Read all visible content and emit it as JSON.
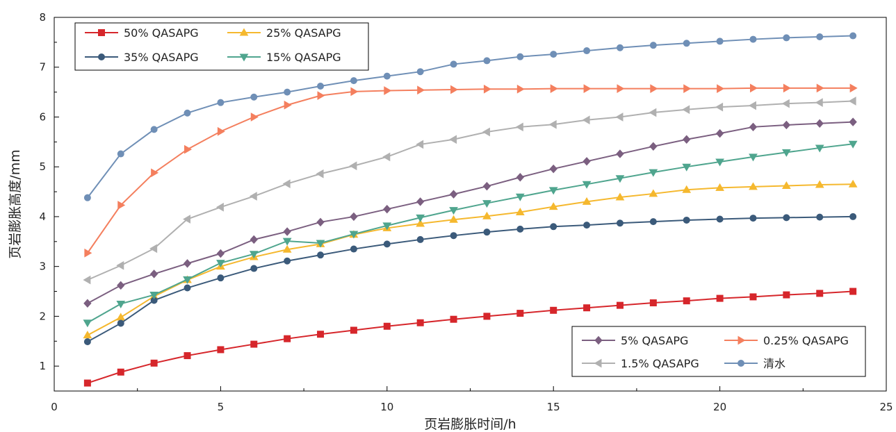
{
  "chart_data": {
    "type": "line",
    "xlabel": "页岩膨胀时间/h",
    "ylabel": "页岩膨胀高度/mm",
    "xlim": [
      0,
      25
    ],
    "ylim": [
      0.5,
      8
    ],
    "xticks": [
      0,
      5,
      10,
      15,
      20,
      25
    ],
    "yticks": [
      1,
      2,
      3,
      4,
      5,
      6,
      7,
      8
    ],
    "grid": false,
    "legends": [
      "top-left",
      "bottom-right"
    ],
    "x": [
      1,
      2,
      3,
      4,
      5,
      6,
      7,
      8,
      9,
      10,
      11,
      12,
      13,
      14,
      15,
      16,
      17,
      18,
      19,
      20,
      21,
      22,
      23,
      24
    ],
    "series": [
      {
        "name": "50% QASAPG",
        "color": "#d6262b",
        "marker": "square",
        "values": [
          0.66,
          0.88,
          1.06,
          1.21,
          1.33,
          1.44,
          1.55,
          1.64,
          1.72,
          1.8,
          1.87,
          1.94,
          2.0,
          2.06,
          2.12,
          2.17,
          2.22,
          2.27,
          2.31,
          2.36,
          2.39,
          2.43,
          2.46,
          2.5
        ]
      },
      {
        "name": "25% QASAPG",
        "color": "#f5b82e",
        "marker": "triangle-up",
        "values": [
          1.62,
          1.98,
          2.4,
          2.73,
          3.0,
          3.19,
          3.34,
          3.45,
          3.64,
          3.77,
          3.86,
          3.94,
          4.01,
          4.09,
          4.2,
          4.3,
          4.39,
          4.46,
          4.54,
          4.58,
          4.6,
          4.62,
          4.64,
          4.65
        ]
      },
      {
        "name": "35% QASAPG",
        "color": "#3b5a7a",
        "marker": "circle",
        "values": [
          1.49,
          1.86,
          2.32,
          2.57,
          2.77,
          2.96,
          3.11,
          3.23,
          3.35,
          3.45,
          3.54,
          3.62,
          3.69,
          3.75,
          3.8,
          3.83,
          3.87,
          3.9,
          3.93,
          3.95,
          3.97,
          3.98,
          3.99,
          4.0
        ]
      },
      {
        "name": "15% QASAPG",
        "color": "#4fa58e",
        "marker": "triangle-down",
        "values": [
          1.87,
          2.25,
          2.43,
          2.74,
          3.07,
          3.25,
          3.51,
          3.47,
          3.65,
          3.82,
          3.98,
          4.13,
          4.27,
          4.4,
          4.53,
          4.65,
          4.77,
          4.89,
          5.0,
          5.1,
          5.2,
          5.29,
          5.38,
          5.46
        ]
      },
      {
        "name": "5% QASAPG",
        "color": "#7b5f80",
        "marker": "diamond",
        "values": [
          2.26,
          2.62,
          2.85,
          3.06,
          3.26,
          3.54,
          3.7,
          3.89,
          4.0,
          4.15,
          4.3,
          4.45,
          4.61,
          4.79,
          4.96,
          5.11,
          5.26,
          5.41,
          5.55,
          5.67,
          5.8,
          5.84,
          5.87,
          5.9
        ]
      },
      {
        "name": "0.25% QASAPG",
        "color": "#f47f5e",
        "marker": "triangle-right",
        "values": [
          3.27,
          4.23,
          4.88,
          5.35,
          5.71,
          6.0,
          6.24,
          6.43,
          6.51,
          6.53,
          6.54,
          6.55,
          6.56,
          6.56,
          6.57,
          6.57,
          6.57,
          6.57,
          6.57,
          6.57,
          6.58,
          6.58,
          6.58,
          6.58
        ]
      },
      {
        "name": "1.5% QASAPG",
        "color": "#b0b0b0",
        "marker": "triangle-left",
        "values": [
          2.73,
          3.02,
          3.36,
          3.95,
          4.19,
          4.41,
          4.66,
          4.86,
          5.02,
          5.2,
          5.45,
          5.55,
          5.7,
          5.8,
          5.85,
          5.94,
          6.0,
          6.09,
          6.15,
          6.2,
          6.23,
          6.27,
          6.29,
          6.32
        ]
      },
      {
        "name": "清水",
        "color": "#6f8fb6",
        "marker": "circle",
        "values": [
          4.38,
          5.26,
          5.75,
          6.08,
          6.29,
          6.4,
          6.5,
          6.62,
          6.73,
          6.82,
          6.91,
          7.06,
          7.13,
          7.21,
          7.26,
          7.33,
          7.39,
          7.44,
          7.48,
          7.52,
          7.56,
          7.59,
          7.61,
          7.63
        ]
      }
    ],
    "legend_top": [
      "50% QASAPG",
      "25% QASAPG",
      "35% QASAPG",
      "15% QASAPG"
    ],
    "legend_bottom": [
      "5% QASAPG",
      "0.25% QASAPG",
      "1.5% QASAPG",
      "清水"
    ]
  }
}
